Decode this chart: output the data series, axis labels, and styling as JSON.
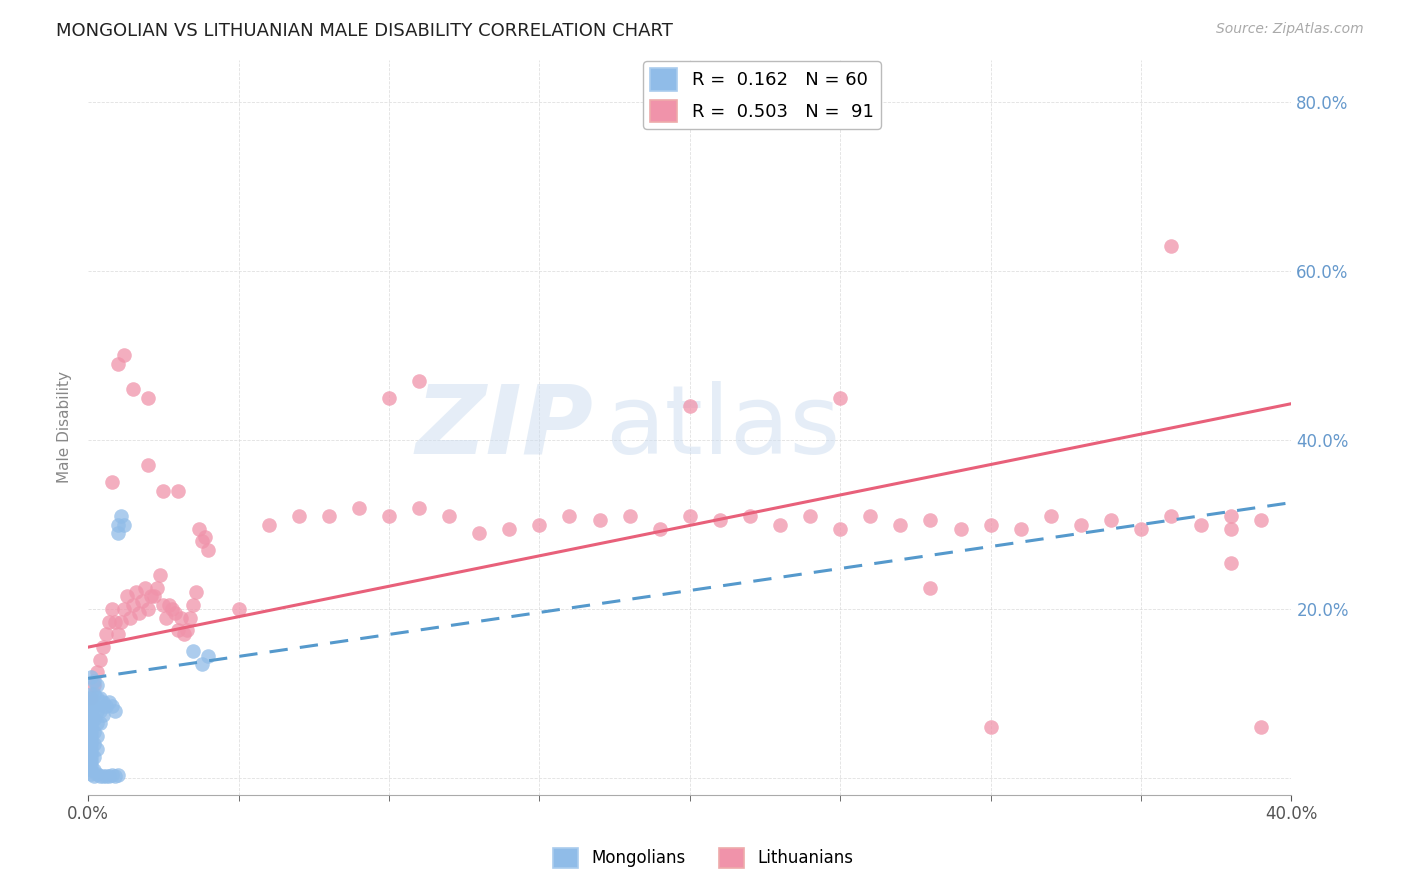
{
  "title": "MONGOLIAN VS LITHUANIAN MALE DISABILITY CORRELATION CHART",
  "source": "Source: ZipAtlas.com",
  "ylabel": "Male Disability",
  "xlim": [
    0.0,
    0.4
  ],
  "ylim": [
    -0.02,
    0.85
  ],
  "x_label_ticks": [
    0.0,
    0.4
  ],
  "yticks": [
    0.0,
    0.2,
    0.4,
    0.6,
    0.8
  ],
  "watermark_zip": "ZIP",
  "watermark_atlas": "atlas",
  "mongolian_color": "#90bce8",
  "lithuanian_color": "#f093aa",
  "mongolian_line_color": "#5599cc",
  "lithuanian_line_color": "#e8607a",
  "right_axis_color": "#6699cc",
  "grid_color": "#dddddd",
  "mongolian_intercept": 0.118,
  "mongolian_slope": 0.52,
  "lithuanian_intercept": 0.155,
  "lithuanian_slope": 0.72,
  "mongolian_points": [
    [
      0.001,
      0.12
    ],
    [
      0.001,
      0.1
    ],
    [
      0.001,
      0.095
    ],
    [
      0.001,
      0.09
    ],
    [
      0.001,
      0.085
    ],
    [
      0.001,
      0.08
    ],
    [
      0.001,
      0.075
    ],
    [
      0.001,
      0.07
    ],
    [
      0.001,
      0.065
    ],
    [
      0.001,
      0.06
    ],
    [
      0.001,
      0.055
    ],
    [
      0.001,
      0.05
    ],
    [
      0.001,
      0.045
    ],
    [
      0.001,
      0.04
    ],
    [
      0.001,
      0.035
    ],
    [
      0.001,
      0.03
    ],
    [
      0.001,
      0.025
    ],
    [
      0.001,
      0.02
    ],
    [
      0.001,
      0.015
    ],
    [
      0.001,
      0.01
    ],
    [
      0.001,
      0.005
    ],
    [
      0.002,
      0.115
    ],
    [
      0.002,
      0.1
    ],
    [
      0.002,
      0.085
    ],
    [
      0.002,
      0.07
    ],
    [
      0.002,
      0.055
    ],
    [
      0.002,
      0.04
    ],
    [
      0.002,
      0.025
    ],
    [
      0.002,
      0.01
    ],
    [
      0.003,
      0.11
    ],
    [
      0.003,
      0.095
    ],
    [
      0.003,
      0.08
    ],
    [
      0.003,
      0.065
    ],
    [
      0.003,
      0.05
    ],
    [
      0.003,
      0.035
    ],
    [
      0.004,
      0.095
    ],
    [
      0.004,
      0.08
    ],
    [
      0.004,
      0.065
    ],
    [
      0.005,
      0.09
    ],
    [
      0.005,
      0.075
    ],
    [
      0.006,
      0.085
    ],
    [
      0.007,
      0.09
    ],
    [
      0.008,
      0.085
    ],
    [
      0.009,
      0.08
    ],
    [
      0.01,
      0.3
    ],
    [
      0.01,
      0.29
    ],
    [
      0.011,
      0.31
    ],
    [
      0.012,
      0.3
    ],
    [
      0.035,
      0.15
    ],
    [
      0.038,
      0.135
    ],
    [
      0.04,
      0.145
    ],
    [
      0.002,
      0.003
    ],
    [
      0.003,
      0.005
    ],
    [
      0.004,
      0.002
    ],
    [
      0.005,
      0.003
    ],
    [
      0.006,
      0.002
    ],
    [
      0.007,
      0.003
    ],
    [
      0.008,
      0.004
    ],
    [
      0.009,
      0.003
    ],
    [
      0.01,
      0.004
    ]
  ],
  "lithuanian_points": [
    [
      0.001,
      0.095
    ],
    [
      0.002,
      0.11
    ],
    [
      0.003,
      0.125
    ],
    [
      0.004,
      0.14
    ],
    [
      0.005,
      0.155
    ],
    [
      0.006,
      0.17
    ],
    [
      0.007,
      0.185
    ],
    [
      0.008,
      0.2
    ],
    [
      0.009,
      0.185
    ],
    [
      0.01,
      0.17
    ],
    [
      0.011,
      0.185
    ],
    [
      0.012,
      0.2
    ],
    [
      0.013,
      0.215
    ],
    [
      0.014,
      0.19
    ],
    [
      0.015,
      0.205
    ],
    [
      0.016,
      0.22
    ],
    [
      0.017,
      0.195
    ],
    [
      0.018,
      0.21
    ],
    [
      0.019,
      0.225
    ],
    [
      0.02,
      0.2
    ],
    [
      0.021,
      0.215
    ],
    [
      0.022,
      0.215
    ],
    [
      0.023,
      0.225
    ],
    [
      0.024,
      0.24
    ],
    [
      0.025,
      0.205
    ],
    [
      0.026,
      0.19
    ],
    [
      0.027,
      0.205
    ],
    [
      0.028,
      0.2
    ],
    [
      0.029,
      0.195
    ],
    [
      0.03,
      0.175
    ],
    [
      0.031,
      0.19
    ],
    [
      0.032,
      0.17
    ],
    [
      0.033,
      0.175
    ],
    [
      0.034,
      0.19
    ],
    [
      0.035,
      0.205
    ],
    [
      0.036,
      0.22
    ],
    [
      0.037,
      0.295
    ],
    [
      0.038,
      0.28
    ],
    [
      0.039,
      0.285
    ],
    [
      0.04,
      0.27
    ],
    [
      0.05,
      0.2
    ],
    [
      0.06,
      0.3
    ],
    [
      0.07,
      0.31
    ],
    [
      0.08,
      0.31
    ],
    [
      0.09,
      0.32
    ],
    [
      0.1,
      0.31
    ],
    [
      0.11,
      0.32
    ],
    [
      0.12,
      0.31
    ],
    [
      0.13,
      0.29
    ],
    [
      0.14,
      0.295
    ],
    [
      0.15,
      0.3
    ],
    [
      0.16,
      0.31
    ],
    [
      0.17,
      0.305
    ],
    [
      0.18,
      0.31
    ],
    [
      0.19,
      0.295
    ],
    [
      0.2,
      0.31
    ],
    [
      0.21,
      0.305
    ],
    [
      0.22,
      0.31
    ],
    [
      0.23,
      0.3
    ],
    [
      0.24,
      0.31
    ],
    [
      0.25,
      0.295
    ],
    [
      0.26,
      0.31
    ],
    [
      0.27,
      0.3
    ],
    [
      0.28,
      0.305
    ],
    [
      0.29,
      0.295
    ],
    [
      0.3,
      0.3
    ],
    [
      0.31,
      0.295
    ],
    [
      0.32,
      0.31
    ],
    [
      0.33,
      0.3
    ],
    [
      0.34,
      0.305
    ],
    [
      0.35,
      0.295
    ],
    [
      0.36,
      0.31
    ],
    [
      0.37,
      0.3
    ],
    [
      0.38,
      0.295
    ],
    [
      0.39,
      0.305
    ],
    [
      0.008,
      0.35
    ],
    [
      0.01,
      0.49
    ],
    [
      0.012,
      0.5
    ],
    [
      0.015,
      0.46
    ],
    [
      0.02,
      0.45
    ],
    [
      0.02,
      0.37
    ],
    [
      0.025,
      0.34
    ],
    [
      0.03,
      0.34
    ],
    [
      0.1,
      0.45
    ],
    [
      0.11,
      0.47
    ],
    [
      0.2,
      0.44
    ],
    [
      0.36,
      0.63
    ],
    [
      0.25,
      0.45
    ],
    [
      0.38,
      0.255
    ],
    [
      0.39,
      0.06
    ],
    [
      0.3,
      0.06
    ],
    [
      0.28,
      0.225
    ],
    [
      0.38,
      0.31
    ]
  ]
}
